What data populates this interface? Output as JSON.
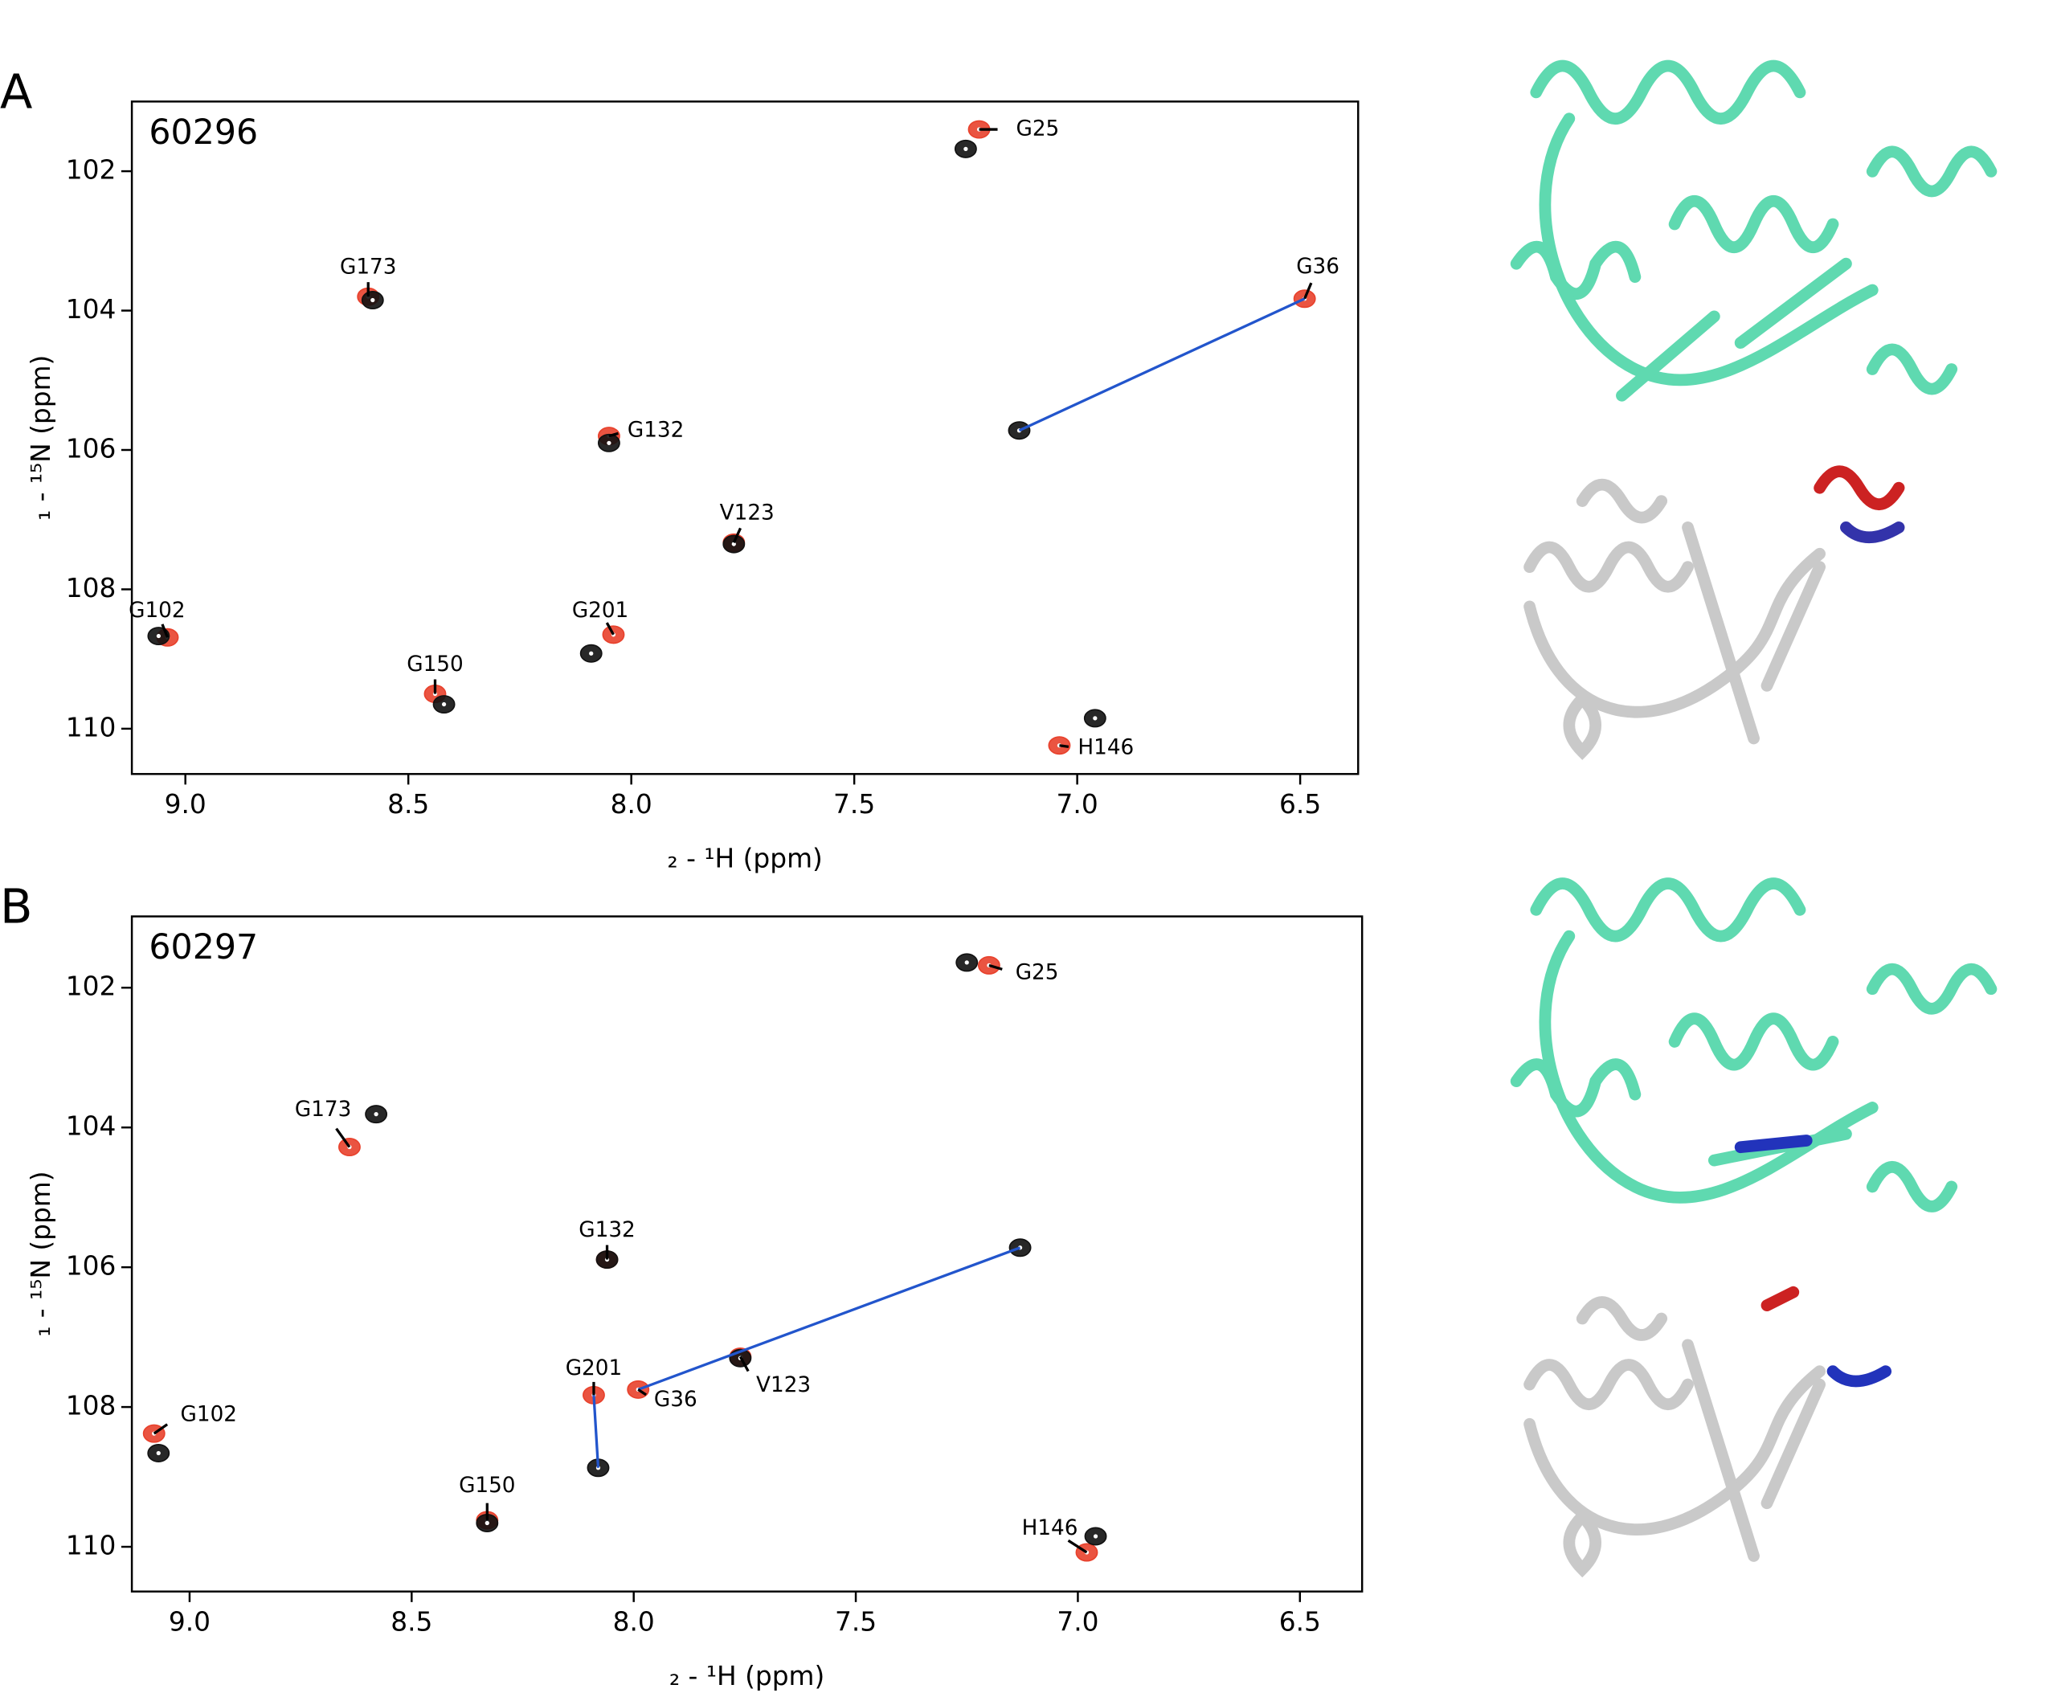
{
  "chart_data": [
    {
      "type": "scatter",
      "panel_label": "A",
      "title": "60296",
      "x_label": "₂ - ¹H  (ppm)",
      "y_label": "₁ - ¹⁵N  (ppm)",
      "xlim": [
        9.12,
        6.37
      ],
      "ylim": [
        101.0,
        110.65
      ],
      "xticks": [
        {
          "value": 9,
          "label": "9.0"
        },
        {
          "value": 8.5,
          "label": "8.5"
        },
        {
          "value": 8,
          "label": "8.0"
        },
        {
          "value": 7.5,
          "label": "7.5"
        },
        {
          "value": 7,
          "label": "7.0"
        },
        {
          "value": 6.5,
          "label": "6.5"
        }
      ],
      "yticks": [
        102,
        104,
        106,
        108,
        110
      ],
      "point_labels": [
        "G25",
        "G36",
        "G173",
        "G132",
        "V123",
        "G102",
        "G201",
        "G150",
        "H146"
      ],
      "series": [
        {
          "color": "#e8412c",
          "x": [
            7.22,
            6.49,
            8.59,
            8.05,
            7.77,
            9.04,
            8.04,
            8.44,
            7.04
          ],
          "values": [
            101.4,
            103.83,
            103.8,
            105.8,
            107.33,
            108.69,
            108.65,
            109.5,
            110.24
          ]
        },
        {
          "color": "#111111",
          "x": [
            7.25,
            7.13,
            8.58,
            8.05,
            7.77,
            9.06,
            8.09,
            8.42,
            6.96
          ],
          "values": [
            101.68,
            105.72,
            103.85,
            105.9,
            107.35,
            108.67,
            108.92,
            109.65,
            109.85
          ]
        },
        {
          "type": "line",
          "color": "#2255cc",
          "x": [
            7.13,
            6.49
          ],
          "values": [
            105.72,
            103.83
          ]
        }
      ]
    },
    {
      "type": "scatter",
      "panel_label": "B",
      "title": "60297",
      "x_label": "₂ - ¹H  (ppm)",
      "y_label": "₁ - ¹⁵N  (ppm)",
      "xlim": [
        9.13,
        6.36
      ],
      "ylim": [
        100.98,
        110.64
      ],
      "xticks": [
        {
          "value": 9,
          "label": "9.0"
        },
        {
          "value": 8.5,
          "label": "8.5"
        },
        {
          "value": 8,
          "label": "8.0"
        },
        {
          "value": 7.5,
          "label": "7.5"
        },
        {
          "value": 7,
          "label": "7.0"
        },
        {
          "value": 6.5,
          "label": "6.5"
        }
      ],
      "yticks": [
        102,
        104,
        106,
        108,
        110
      ],
      "point_labels": [
        "G25",
        "G36",
        "G173",
        "G132",
        "V123",
        "G102",
        "G201",
        "G150",
        "H146"
      ],
      "series": [
        {
          "color": "#e8412c",
          "x": [
            7.2,
            7.99,
            8.64,
            8.06,
            7.76,
            9.08,
            8.09,
            8.33,
            6.98
          ],
          "values": [
            101.68,
            107.75,
            104.28,
            105.89,
            107.28,
            108.38,
            107.83,
            109.62,
            110.08
          ]
        },
        {
          "color": "#111111",
          "x": [
            7.25,
            7.13,
            8.58,
            8.06,
            7.76,
            9.07,
            8.08,
            8.33,
            6.96
          ],
          "values": [
            101.64,
            105.72,
            103.81,
            105.89,
            107.3,
            108.66,
            108.87,
            109.66,
            109.85
          ]
        },
        {
          "type": "line",
          "color": "#2255cc",
          "x": [
            7.13,
            7.99,
            null,
            8.08,
            8.09
          ],
          "values": [
            105.72,
            107.75,
            null,
            108.87,
            107.83
          ]
        }
      ]
    }
  ]
}
